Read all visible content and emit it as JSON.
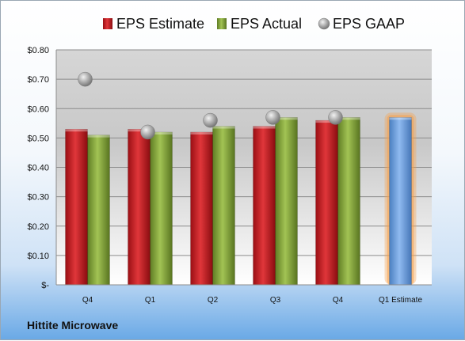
{
  "company_label": "Hittite Microwave",
  "chart_data": {
    "type": "bar",
    "categories": [
      "Q4",
      "Q1",
      "Q2",
      "Q3",
      "Q4",
      "Q1 Estimate"
    ],
    "y_ticks": [
      "$-",
      "$0.10",
      "$0.20",
      "$0.30",
      "$0.40",
      "$0.50",
      "$0.60",
      "$0.70",
      "$0.80"
    ],
    "ylim": [
      0,
      0.8
    ],
    "grid": true,
    "legend_position": "top",
    "series": [
      {
        "name": "EPS Estimate",
        "kind": "bar",
        "color": "#c8191e",
        "values": [
          0.53,
          0.53,
          0.52,
          0.54,
          0.56,
          null
        ]
      },
      {
        "name": "EPS Actual",
        "kind": "bar",
        "color": "#86a83a",
        "values": [
          0.51,
          0.52,
          0.54,
          0.57,
          0.57,
          null
        ]
      },
      {
        "name": "EPS GAAP",
        "kind": "marker",
        "color": "#a0a0a0",
        "values": [
          0.7,
          0.52,
          0.56,
          0.57,
          0.57,
          null
        ]
      },
      {
        "name": "Q1 Estimate",
        "kind": "bar",
        "color": "#6a9fdc",
        "highlight": "#f5a04a",
        "values": [
          null,
          null,
          null,
          null,
          null,
          0.57
        ]
      }
    ]
  }
}
